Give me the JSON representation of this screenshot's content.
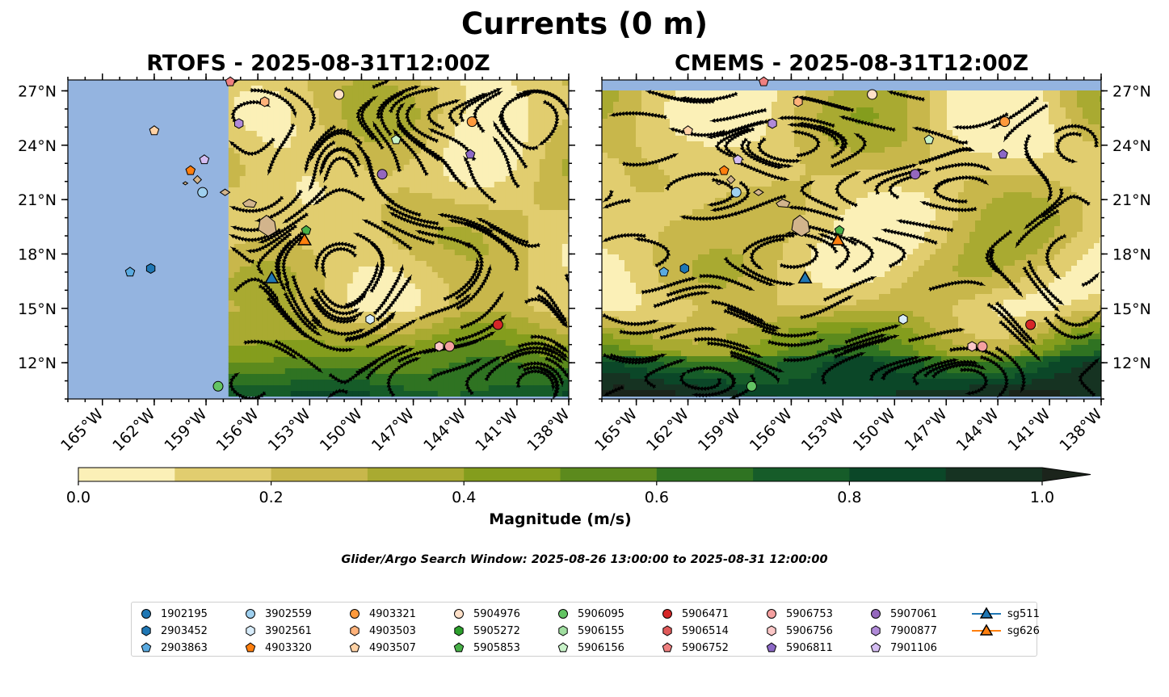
{
  "figure": {
    "suptitle": "Currents (0 m)",
    "search_window": "Glider/Argo Search Window: 2025-08-26 13:00:00 to 2025-08-31 12:00:00"
  },
  "chart_data": [
    {
      "type": "map",
      "panel": "left",
      "title": "RTOFS - 2025-08-31T12:00Z",
      "lon_range": [
        -167,
        -138
      ],
      "lat_range": [
        10,
        27.6
      ],
      "data_lon_range": [
        -157.7,
        -138
      ],
      "lon_ticks": [
        -165,
        -162,
        -159,
        -156,
        -153,
        -150,
        -147,
        -144,
        -141,
        -138
      ],
      "lon_tick_labels": [
        "165°W",
        "162°W",
        "159°W",
        "156°W",
        "153°W",
        "150°W",
        "147°W",
        "144°W",
        "141°W",
        "138°W"
      ],
      "lat_ticks": [
        12,
        15,
        18,
        21,
        24,
        27
      ],
      "lat_tick_labels": [
        "12°N",
        "15°N",
        "18°N",
        "21°N",
        "24°N",
        "27°N"
      ],
      "lat_labels_side": "left"
    },
    {
      "type": "map",
      "panel": "right",
      "title": "CMEMS - 2025-08-31T12:00Z",
      "lon_range": [
        -167,
        -138
      ],
      "lat_range": [
        10,
        27.6
      ],
      "data_lon_range": [
        -167,
        -138
      ],
      "lon_ticks": [
        -165,
        -162,
        -159,
        -156,
        -153,
        -150,
        -147,
        -144,
        -141,
        -138
      ],
      "lon_tick_labels": [
        "165°W",
        "162°W",
        "159°W",
        "156°W",
        "153°W",
        "150°W",
        "147°W",
        "144°W",
        "141°W",
        "138°W"
      ],
      "lat_ticks": [
        12,
        15,
        18,
        21,
        24,
        27
      ],
      "lat_tick_labels": [
        "12°N",
        "15°N",
        "18°N",
        "21°N",
        "24°N",
        "27°N"
      ],
      "lat_labels_side": "right"
    }
  ],
  "colorbar": {
    "label": "Magnitude (m/s)",
    "ticks": [
      0.0,
      0.2,
      0.4,
      0.6,
      0.8,
      1.0
    ],
    "tick_labels": [
      "0.0",
      "0.2",
      "0.4",
      "0.6",
      "0.8",
      "1.0"
    ],
    "bins": [
      0,
      0.1,
      0.2,
      0.3,
      0.4,
      0.5,
      0.6,
      0.7,
      0.8,
      0.9,
      1.0
    ],
    "colors": [
      "#fbf0b7",
      "#e1cd6f",
      "#c8b74b",
      "#a9aa31",
      "#849d1d",
      "#5c8a1d",
      "#2f7322",
      "#165c29",
      "#0b4728",
      "#163322",
      "#1b241b"
    ],
    "extend": "max"
  },
  "observations": [
    {
      "id": "1902195",
      "marker": "circle",
      "color": "#1f77b4",
      "lon": null,
      "lat": null
    },
    {
      "id": "2903452",
      "marker": "hexagon",
      "color": "#1f77b4",
      "lon": -162.2,
      "lat": 17.2
    },
    {
      "id": "2903863",
      "marker": "pentagon",
      "color": "#5aaae0",
      "lon": -163.4,
      "lat": 17.0
    },
    {
      "id": "3902559",
      "marker": "circle",
      "color": "#9fd0ef",
      "lon": -159.2,
      "lat": 21.4
    },
    {
      "id": "3902561",
      "marker": "hexagon",
      "color": "#d8ecfa",
      "lon": -149.5,
      "lat": 14.4
    },
    {
      "id": "4903320",
      "marker": "pentagon",
      "color": "#ff7f0e",
      "lon": -159.9,
      "lat": 22.6
    },
    {
      "id": "4903321",
      "marker": "circle",
      "color": "#ff9a3c",
      "lon": -143.6,
      "lat": 25.3
    },
    {
      "id": "4903503",
      "marker": "hexagon",
      "color": "#ffb27a",
      "lon": -155.6,
      "lat": 26.4
    },
    {
      "id": "4903507",
      "marker": "pentagon",
      "color": "#ffd2a5",
      "lon": -162.0,
      "lat": 24.8
    },
    {
      "id": "5904976",
      "marker": "circle",
      "color": "#ffe0c8",
      "lon": -151.3,
      "lat": 26.8
    },
    {
      "id": "5905272",
      "marker": "hexagon",
      "color": "#2ca02c",
      "lon": null,
      "lat": null
    },
    {
      "id": "5905853",
      "marker": "pentagon",
      "color": "#48b048",
      "lon": -153.2,
      "lat": 19.3
    },
    {
      "id": "5906095",
      "marker": "circle",
      "color": "#63c463",
      "lon": -158.3,
      "lat": 10.7
    },
    {
      "id": "5906155",
      "marker": "hexagon",
      "color": "#a0dea0",
      "lon": null,
      "lat": null
    },
    {
      "id": "5906156",
      "marker": "pentagon",
      "color": "#c8f2c8",
      "lon": -148.0,
      "lat": 24.3
    },
    {
      "id": "5906471",
      "marker": "circle",
      "color": "#d62728",
      "lon": -142.1,
      "lat": 14.1
    },
    {
      "id": "5906514",
      "marker": "hexagon",
      "color": "#e05a5a",
      "lon": null,
      "lat": null
    },
    {
      "id": "5906752",
      "marker": "pentagon",
      "color": "#ef8080",
      "lon": -157.6,
      "lat": 27.5
    },
    {
      "id": "5906753",
      "marker": "circle",
      "color": "#f5a0a0",
      "lon": -144.9,
      "lat": 12.9
    },
    {
      "id": "5906756",
      "marker": "hexagon",
      "color": "#fbc7c7",
      "lon": -145.5,
      "lat": 12.9
    },
    {
      "id": "5906811",
      "marker": "pentagon",
      "color": "#8c68c6",
      "lon": -143.7,
      "lat": 23.5
    },
    {
      "id": "5907061",
      "marker": "circle",
      "color": "#9467bd",
      "lon": -148.8,
      "lat": 22.4
    },
    {
      "id": "7900877",
      "marker": "hexagon",
      "color": "#b08ad8",
      "lon": -157.1,
      "lat": 25.2
    },
    {
      "id": "7901106",
      "marker": "pentagon",
      "color": "#d4bdf2",
      "lon": -159.1,
      "lat": 23.2
    },
    {
      "id": "sg511",
      "marker": "triangle",
      "color": "#1f77b4",
      "lon": -155.2,
      "lat": 16.7
    },
    {
      "id": "sg626",
      "marker": "triangle",
      "color": "#ff7f0e",
      "lon": -153.3,
      "lat": 18.8
    }
  ]
}
